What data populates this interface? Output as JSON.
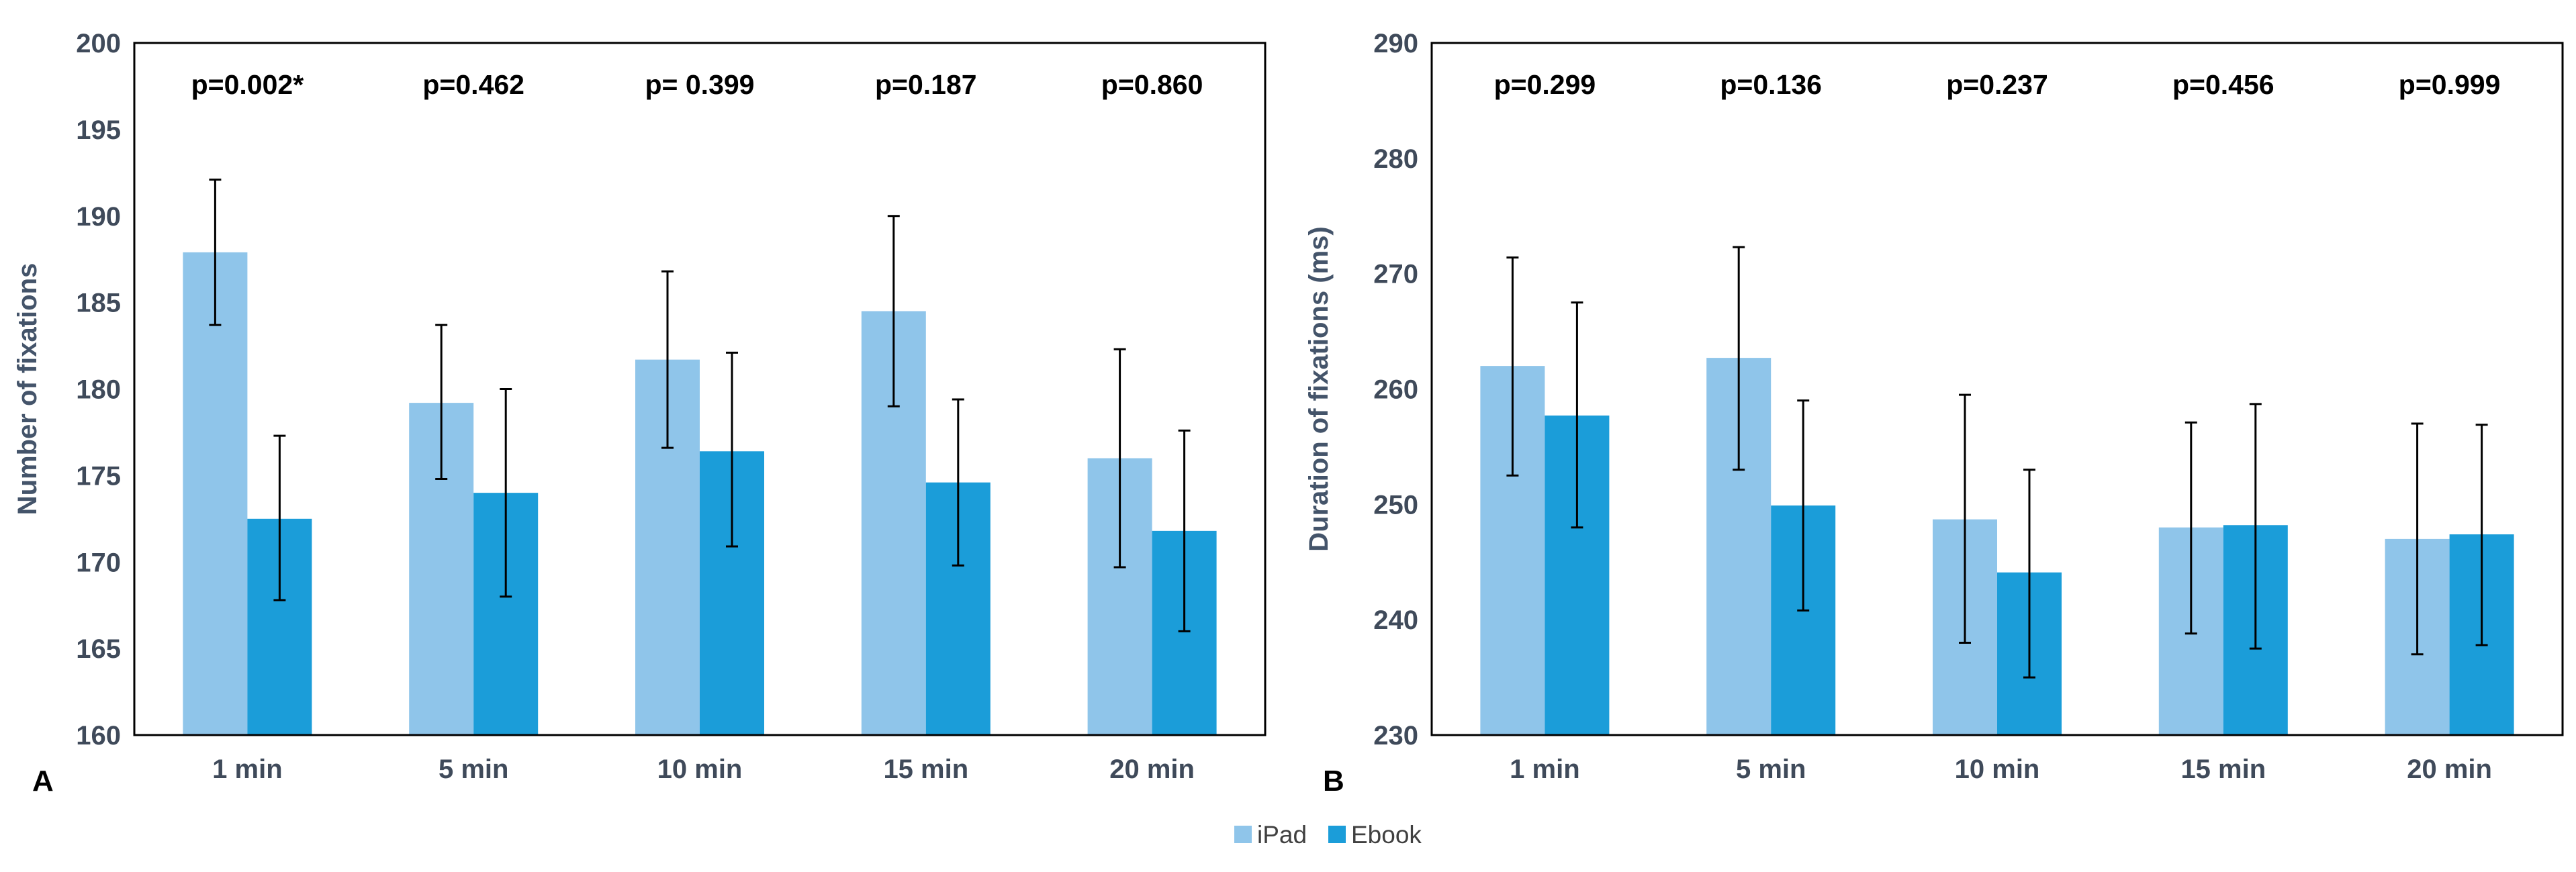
{
  "legend": {
    "items": [
      {
        "label": "iPad",
        "color": "#8fc5ea"
      },
      {
        "label": "Ebook",
        "color": "#1b9dd9"
      }
    ]
  },
  "chart_data": [
    {
      "type": "bar",
      "panel_label": "A",
      "title": "",
      "xlabel": "",
      "ylabel": "Number of fixations",
      "ylim": [
        160,
        200
      ],
      "yticks": [
        160,
        165,
        170,
        175,
        180,
        185,
        190,
        195,
        200
      ],
      "categories": [
        "1 min",
        "5 min",
        "10 min",
        "15 min",
        "20 min"
      ],
      "annotations": [
        "p=0.002*",
        "p=0.462",
        "p= 0.399",
        "p=0.187",
        "p=0.860"
      ],
      "series": [
        {
          "name": "iPad",
          "color": "#8fc5ea",
          "values": [
            187.9,
            179.2,
            181.7,
            184.5,
            176.0
          ],
          "err_low": [
            183.7,
            174.8,
            176.6,
            179.0,
            169.7
          ],
          "err_high": [
            192.1,
            183.7,
            186.8,
            190.0,
            182.3
          ]
        },
        {
          "name": "Ebook",
          "color": "#1b9dd9",
          "values": [
            172.5,
            174.0,
            176.4,
            174.6,
            171.8
          ],
          "err_low": [
            167.8,
            168.0,
            170.9,
            169.8,
            166.0
          ],
          "err_high": [
            177.3,
            180.0,
            182.1,
            179.4,
            177.6
          ]
        }
      ]
    },
    {
      "type": "bar",
      "panel_label": "B",
      "title": "",
      "xlabel": "",
      "ylabel": "Duration of fixations (ms)",
      "ylim": [
        230,
        290
      ],
      "yticks": [
        230,
        240,
        250,
        260,
        270,
        280,
        290
      ],
      "categories": [
        "1 min",
        "5 min",
        "10 min",
        "15 min",
        "20 min"
      ],
      "annotations": [
        "p=0.299",
        "p=0.136",
        "p=0.237",
        "p=0.456",
        "p=0.999"
      ],
      "series": [
        {
          "name": "iPad",
          "color": "#8fc5ea",
          "values": [
            262.0,
            262.7,
            248.7,
            248.0,
            247.0
          ],
          "err_low": [
            252.5,
            253.0,
            238.0,
            238.8,
            237.0
          ],
          "err_high": [
            271.4,
            272.3,
            259.5,
            257.1,
            257.0
          ]
        },
        {
          "name": "Ebook",
          "color": "#1b9dd9",
          "values": [
            257.7,
            249.9,
            244.1,
            248.2,
            247.4
          ],
          "err_low": [
            248.0,
            240.8,
            235.0,
            237.5,
            237.8
          ],
          "err_high": [
            267.5,
            259.0,
            253.0,
            258.7,
            256.9
          ]
        }
      ]
    }
  ]
}
